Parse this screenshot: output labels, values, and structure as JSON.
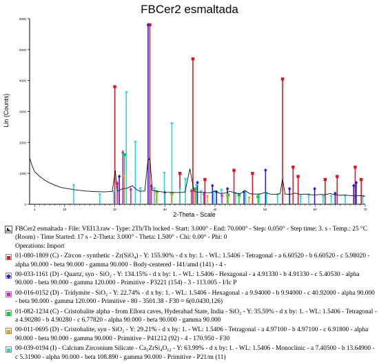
{
  "title": "FBCer2 esmaltada",
  "chart_data": {
    "type": "line",
    "title": "FBCer2 esmaltada",
    "xlabel": "2-Theta - Scale",
    "ylabel": "Lin (Counts)",
    "xlim": [
      3,
      70
    ],
    "ylim": [
      0,
      6000
    ],
    "x_ticks": [
      "4",
      "10",
      "20",
      "30",
      "40",
      "50",
      "60",
      "70"
    ],
    "x_tick_values": [
      4,
      10,
      20,
      30,
      40,
      50,
      60,
      70
    ],
    "y_ticks": [
      "0",
      "1000",
      "2000",
      "3000",
      "4000",
      "5000",
      "6000"
    ],
    "y_tick_values": [
      0,
      1000,
      2000,
      3000,
      4000,
      5000,
      6000
    ],
    "pattern": {
      "x": [
        3,
        3.5,
        4,
        5,
        6,
        7,
        8,
        9,
        10,
        12,
        14,
        16,
        18,
        19.5,
        20.1,
        20.5,
        21.5,
        22.5,
        23.5,
        24.3,
        25,
        26,
        26.6,
        27,
        27.5,
        28.5,
        30,
        32,
        33,
        34,
        35,
        35.8,
        36.2,
        37,
        38,
        39,
        40,
        41,
        42,
        43,
        44,
        45,
        46,
        47,
        48,
        49,
        50,
        51,
        52,
        53,
        53.5,
        54,
        55,
        56,
        57,
        58,
        59,
        60,
        61,
        62,
        63,
        64,
        65,
        66,
        67,
        68,
        69,
        70
      ],
      "y": [
        1500,
        1250,
        1050,
        900,
        780,
        690,
        620,
        560,
        520,
        470,
        430,
        410,
        400,
        420,
        1100,
        420,
        500,
        520,
        600,
        480,
        420,
        430,
        1400,
        1500,
        450,
        420,
        390,
        380,
        380,
        390,
        1150,
        430,
        400,
        390,
        380,
        370,
        430,
        350,
        360,
        420,
        360,
        340,
        440,
        340,
        330,
        330,
        380,
        330,
        320,
        340,
        820,
        330,
        320,
        360,
        320,
        330,
        310,
        300,
        320,
        310,
        350,
        300,
        290,
        300,
        280,
        270,
        280,
        260
      ]
    },
    "phases": [
      {
        "id": "01-080-1809",
        "name": "Zircon - synthetic",
        "color": "#e8121c",
        "marker": "square",
        "peaks": [
          [
            20.0,
            3800
          ],
          [
            27.0,
            5800
          ],
          [
            33.0,
            1000
          ],
          [
            35.6,
            4700
          ],
          [
            38.0,
            800
          ],
          [
            43.8,
            1100
          ],
          [
            47.5,
            1000
          ],
          [
            53.5,
            4050
          ],
          [
            55.6,
            1200
          ],
          [
            56.6,
            900
          ],
          [
            62.0,
            800
          ],
          [
            64.4,
            900
          ],
          [
            68.0,
            1200
          ],
          [
            69.2,
            800
          ]
        ],
        "legend": "01-080-1809 (C) - Zircon - synthetic - Zr(SiO₄) - Y: 155.90% - d x by: 1. - WL: 1.5406 - Tetragonal - a 6.60520 - b 6.60520 - c 5.98020 - alpha 90.000 - beta 90.000 - gamma 90.000 - Body-centered - I41/amd (141) - 4 -"
      },
      {
        "id": "00-033-1161",
        "name": "Quartz, syn",
        "color": "#2a1adb",
        "marker": "diamond",
        "peaks": [
          [
            20.9,
            900
          ],
          [
            26.65,
            5800
          ],
          [
            36.5,
            700
          ],
          [
            39.5,
            600
          ],
          [
            40.3,
            400
          ],
          [
            42.5,
            500
          ],
          [
            45.8,
            400
          ],
          [
            50.1,
            1100
          ],
          [
            54.9,
            500
          ],
          [
            59.9,
            500
          ],
          [
            64.0,
            350
          ],
          [
            67.7,
            600
          ],
          [
            68.2,
            700
          ]
        ],
        "legend": "00-033-1161 (D) - Quartz, syn - SiO₂ - Y: 134.15% - d x by: 1. - WL: 1.5406 - Hexagonal - a 4.91330 - b 4.91330 - c 5.40530 - alpha 90.000 - beta 90.000 - gamma 120.000 - Primitive - P3221 (154) - 3 - 113.005 - I/Ic P"
      },
      {
        "id": "00-016-0152",
        "name": "Tridymite",
        "color": "#e010e0",
        "marker": "triangle",
        "peaks": [
          [
            21.6,
            1700
          ],
          [
            20.5,
            700
          ],
          [
            23.2,
            500
          ],
          [
            27.3,
            600
          ],
          [
            30.0,
            400
          ],
          [
            35.3,
            450
          ],
          [
            37.8,
            350
          ],
          [
            41.4,
            300
          ]
        ],
        "legend": "00-016-0152 (D) - Tridymite - SiO₂ - Y: 22.74% - d x by: 1. - WL: 1.5406 - Hexagonal - a 9.94000 - b 9.94000 - c 40.92000 - alpha 90.000 - beta 90.000 - gamma 120.000 - Primitive - 80 - 3501.38 - F30 = 6(0.0430,126)"
      },
      {
        "id": "01-082-1234",
        "name": "Cristobalite alpha",
        "color": "#11cc33",
        "marker": "square",
        "peaks": [
          [
            21.9,
            1600
          ],
          [
            28.4,
            400
          ],
          [
            31.4,
            350
          ],
          [
            36.1,
            500
          ],
          [
            42.6,
            300
          ],
          [
            44.8,
            300
          ],
          [
            48.6,
            250
          ]
        ],
        "legend": "01-082-1234 (C) - Cristobalite alpha - from Ellora caves, Hyderabad State, India - SiO₂ - Y: 35.59% - d x by: 1. - WL: 1.5406 - Tetragonal - a 4.90280 - b 4.90280 - c 6.77820 - alpha 90.000 - beta 90.000 - gamma 90.000"
      },
      {
        "id": "00-011-0695",
        "name": "Cristobalite, syn",
        "color": "#e8a21c",
        "marker": "triangle-down",
        "peaks": [
          [
            21.8,
            900
          ],
          [
            28.3,
            350
          ],
          [
            31.3,
            300
          ],
          [
            36.0,
            400
          ],
          [
            38.5,
            250
          ],
          [
            42.4,
            250
          ],
          [
            46.8,
            200
          ]
        ],
        "legend": "00-011-0695 (D) - Cristobalite, syn - SiO₂ - Y: 29.21% - d x by: 1. - WL: 1.5406 - Tetragonal - a 4.97100 - b 4.97100 - c 6.91800 - alpha 90.000 - beta 90.000 - gamma 90.000 - Primitive - P41212 (92) - 4 - 170.950 - F30"
      },
      {
        "id": "00-039-0194",
        "name": "Calcium Zirconium Silicate",
        "color": "#22d8dc",
        "marker": "triangle-down",
        "peaks": [
          [
            11.8,
            600
          ],
          [
            17.0,
            300
          ],
          [
            19.8,
            400
          ],
          [
            22.3,
            3600
          ],
          [
            24.1,
            2000
          ],
          [
            25.1,
            500
          ],
          [
            27.9,
            500
          ],
          [
            29.9,
            1000
          ],
          [
            31.4,
            2600
          ],
          [
            33.0,
            500
          ],
          [
            34.1,
            800
          ],
          [
            36.3,
            600
          ],
          [
            37.2,
            400
          ],
          [
            39.8,
            400
          ],
          [
            41.3,
            450
          ],
          [
            44.1,
            350
          ],
          [
            46.1,
            400
          ],
          [
            48.8,
            300
          ],
          [
            50.3,
            350
          ],
          [
            52.5,
            300
          ],
          [
            57.1,
            250
          ],
          [
            58.7,
            300
          ],
          [
            61.6,
            250
          ],
          [
            63.2,
            250
          ],
          [
            66.0,
            250
          ],
          [
            69.5,
            250
          ]
        ],
        "legend": "00-039-0194 (I) - Calcium Zirconium Silicate - Ca₂ZrSi₄O₁₂ - Y: 63.99% - d x by: 1. - WL: 1.5406 - Monoclinic - a 7.40500 - b 13.64900 - c 5.31900 - alpha 90.000 - beta 108.890 - gamma 90.000 - Primitive - P21/m (11)"
      }
    ],
    "legend_sample": "FBCer2 esmaltada - File: VEI13.raw - Type: 2Th/Th locked - Start: 3.000° - End: 70.000° - Step: 0.050° - Step time: 3. s - Temp.: 25 °C (Room) - Time Started: 17 s - 2-Theta: 3.000° - Theta: 1.500° - Chi: 0.00° - Phi: 0",
    "legend_operations": "Operations: Import"
  }
}
